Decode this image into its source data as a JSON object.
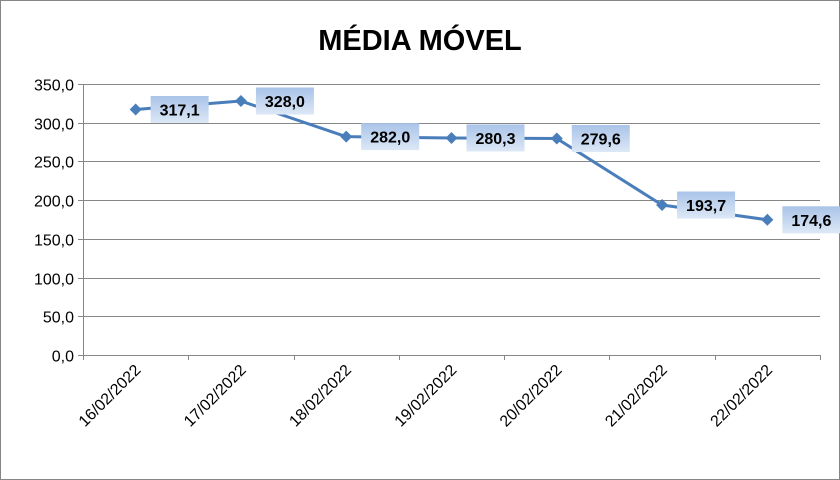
{
  "chart_data": {
    "type": "line",
    "title": "MÉDIA MÓVEL",
    "xlabel": "",
    "ylabel": "",
    "categories": [
      "16/02/2022",
      "17/02/2022",
      "18/02/2022",
      "19/02/2022",
      "20/02/2022",
      "21/02/2022",
      "22/02/2022"
    ],
    "values": [
      317.1,
      328.0,
      282.0,
      280.3,
      279.6,
      193.7,
      174.6
    ],
    "data_labels": [
      "317,1",
      "328,0",
      "282,0",
      "280,3",
      "279,6",
      "193,7",
      "174,6"
    ],
    "yticks": [
      "0,0",
      "50,0",
      "100,0",
      "150,0",
      "200,0",
      "250,0",
      "300,0",
      "350,0"
    ],
    "ylim": [
      0,
      350
    ],
    "grid": true,
    "legend": "none",
    "line_color": "#4a7ebb"
  }
}
